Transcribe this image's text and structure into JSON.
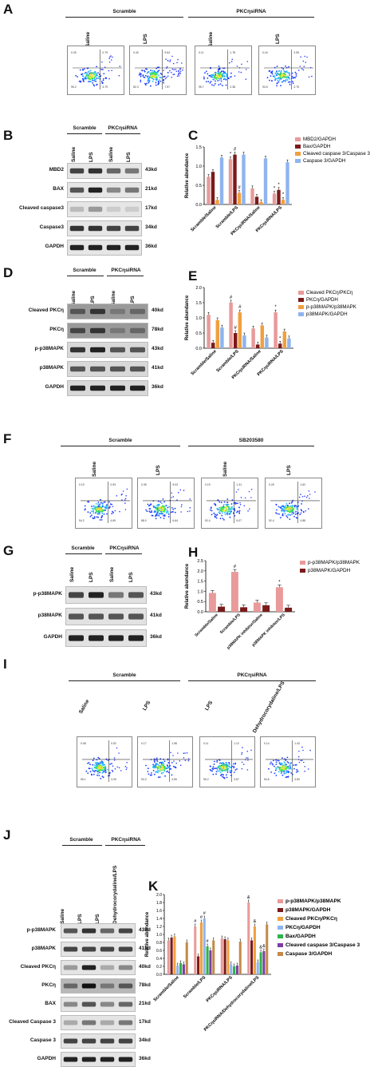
{
  "panels": {
    "A": {
      "letter": "A",
      "groups": [
        "Scramble",
        "PKCηsiRNA"
      ],
      "conditions": [
        "Saline",
        "LPS",
        "Saline",
        "LPS"
      ],
      "quadrants": [
        [
          "0.25",
          "0.79",
          "95.2",
          "3.79"
        ],
        [
          "0.43",
          "9.64",
          "82.3",
          "7.57"
        ],
        [
          "0.11",
          "1.78",
          "95.7",
          "2.38"
        ],
        [
          "0.16",
          "2.59",
          "94.5",
          "2.75"
        ]
      ]
    },
    "B": {
      "letter": "B",
      "groups": [
        "Scramble",
        "PKCηsiRNA"
      ],
      "conditions": [
        "Saline",
        "LPS",
        "Saline",
        "LPS"
      ],
      "rows": [
        {
          "name": "MBD2",
          "kd": "43kd"
        },
        {
          "name": "BAX",
          "kd": "21kd"
        },
        {
          "name": "Cleaved caspase3",
          "kd": "17kd"
        },
        {
          "name": "Caspase3",
          "kd": "34kd"
        },
        {
          "name": "GAPDH",
          "kd": "36kd"
        }
      ]
    },
    "C": {
      "letter": "C"
    },
    "D": {
      "letter": "D",
      "groups": [
        "Scramble",
        "PKCηsiRNA"
      ],
      "conditions": [
        "Saline",
        "LPS",
        "Saline",
        "LPS"
      ],
      "rows": [
        {
          "name": "Cleaved PKCη",
          "kd": "40kd"
        },
        {
          "name": "PKCη",
          "kd": "78kd"
        },
        {
          "name": "p-p38MAPK",
          "kd": "43kd"
        },
        {
          "name": "p38MAPK",
          "kd": "41kd"
        },
        {
          "name": "GAPDH",
          "kd": "36kd"
        }
      ]
    },
    "E": {
      "letter": "E"
    },
    "F": {
      "letter": "F",
      "groups": [
        "Scramble",
        "SB203580"
      ],
      "conditions": [
        "Saline",
        "LPS",
        "Saline",
        "LPS"
      ],
      "quadrants": [
        [
          "0.19",
          "0.93",
          "94.2",
          "4.69"
        ],
        [
          "0.35",
          "5.03",
          "88.0",
          "6.64"
        ],
        [
          "0.19",
          "1.31",
          "92.4",
          "6.07"
        ],
        [
          "0.25",
          "1.62",
          "92.4",
          "4.88"
        ]
      ]
    },
    "G": {
      "letter": "G",
      "groups": [
        "Scramble",
        "PKCηsiRNA"
      ],
      "conditions": [
        "Saline",
        "LPS",
        "Saline",
        "LPS"
      ],
      "rows": [
        {
          "name": "p-p38MAPK",
          "kd": "43kd"
        },
        {
          "name": "p38MAPK",
          "kd": "41kd"
        },
        {
          "name": "GAPDH",
          "kd": "36kd"
        }
      ]
    },
    "H": {
      "letter": "H"
    },
    "I": {
      "letter": "I",
      "groups": [
        "Scramble",
        "PKCηsiRNA"
      ],
      "conditions": [
        "Saline",
        "LPS",
        "LPS",
        "Dehydrocorydaline/LPS"
      ],
      "quadrants": [
        [
          "0.08",
          "0.52",
          "96.1",
          "3.30"
        ],
        [
          "0.17",
          "1.98",
          "93.3",
          "4.55"
        ],
        [
          "0.11",
          "1.12",
          "95.2",
          "3.57"
        ],
        [
          "0.14",
          "1.43",
          "94.6",
          "3.83"
        ]
      ]
    },
    "J": {
      "letter": "J",
      "groups": [
        "Scramble",
        "PKCηsiRNA"
      ],
      "conditions": [
        "Saline",
        "LPS",
        "LPS",
        "Dehydrocorydaline/LPS"
      ],
      "rows": [
        {
          "name": "p-p38MAPK",
          "kd": "43kd"
        },
        {
          "name": "p38MAPK",
          "kd": "41kd"
        },
        {
          "name": "Cleaved PKCη",
          "kd": "40kd"
        },
        {
          "name": "PKCη",
          "kd": "78kd"
        },
        {
          "name": "BAX",
          "kd": "21kd"
        },
        {
          "name": "Cleaved Caspase 3",
          "kd": "17kd"
        },
        {
          "name": "Caspase 3",
          "kd": "34kd"
        },
        {
          "name": "GAPDH",
          "kd": "36kd"
        }
      ]
    },
    "K": {
      "letter": "K"
    }
  },
  "flow_axis": {
    "x": "Comp-FL1-A(FITC) :: FITC",
    "y": "Comp-FL2-A(PE) :: PI"
  },
  "colors": {
    "pink": "#e99a9a",
    "darkred": "#7a1a1a",
    "orange": "#f0a040",
    "lightblue": "#8fb4ee",
    "green": "#2db34a",
    "purple": "#7c3ea0",
    "brown": "#c48a4a"
  },
  "chart_data": [
    {
      "type": "bar",
      "panel": "C",
      "ylabel": "Relative abundance",
      "ylim": [
        0,
        1.5
      ],
      "yticks": [
        "0.0",
        "0.5",
        "1.0",
        "1.5"
      ],
      "categories": [
        "Scramble/Saline",
        "Scramble/LPS",
        "PKCηsiRNA/Saline",
        "PKCηsiRNA/LPS"
      ],
      "series": [
        {
          "name": "MBD2/GAPDH",
          "values": [
            0.72,
            1.18,
            0.42,
            0.28
          ]
        },
        {
          "name": "Bax/GAPDH",
          "values": [
            0.85,
            1.3,
            0.2,
            0.38
          ]
        },
        {
          "name": "Cleaved caspase 3/Caspase 3",
          "values": [
            0.12,
            0.3,
            0.06,
            0.12
          ]
        },
        {
          "name": "Caspase 3/GAPDH",
          "values": [
            1.22,
            1.3,
            1.2,
            1.1
          ]
        }
      ],
      "annotations": [
        {
          "category": 1,
          "series": 0,
          "text": "*"
        },
        {
          "category": 1,
          "series": 1,
          "text": "#"
        },
        {
          "category": 1,
          "series": 2,
          "text": "#"
        },
        {
          "category": 3,
          "series": 0,
          "text": "*"
        },
        {
          "category": 3,
          "series": 1,
          "text": "*"
        },
        {
          "category": 3,
          "series": 2,
          "text": "*"
        }
      ]
    },
    {
      "type": "bar",
      "panel": "E",
      "ylabel": "Relative abundance",
      "ylim": [
        0,
        2.0
      ],
      "yticks": [
        "0.0",
        "0.5",
        "1.0",
        "1.5",
        "2.0"
      ],
      "categories": [
        "Scramble/Saline",
        "Scramble/LPS",
        "PKCηsiRNA/Saline",
        "PKCηsiRNA/LPS"
      ],
      "series": [
        {
          "name": "Cleaved PKCη/PKCη",
          "values": [
            1.1,
            1.5,
            0.65,
            1.18
          ]
        },
        {
          "name": "PKCη/GAPDH",
          "values": [
            0.18,
            0.5,
            0.12,
            0.15
          ]
        },
        {
          "name": "p-p38MAPK/p38MAPK",
          "values": [
            0.92,
            1.18,
            0.75,
            0.55
          ]
        },
        {
          "name": "p38MAPK/GAPDH",
          "values": [
            0.68,
            0.42,
            0.35,
            0.32
          ]
        }
      ],
      "annotations": [
        {
          "category": 1,
          "series": 0,
          "text": "#"
        },
        {
          "category": 1,
          "series": 1,
          "text": "#"
        },
        {
          "category": 1,
          "series": 2,
          "text": "#"
        },
        {
          "category": 3,
          "series": 0,
          "text": "*"
        },
        {
          "category": 3,
          "series": 1,
          "text": "*"
        }
      ]
    },
    {
      "type": "bar",
      "panel": "H",
      "ylabel": "Relative abundance",
      "ylim": [
        0,
        2.5
      ],
      "yticks": [
        "0.0",
        "0.5",
        "1.0",
        "1.5",
        "2.0",
        "2.5"
      ],
      "categories": [
        "Scramble/Saline",
        "Scramble/LPS",
        "p38MAPK inhibitor/Saline",
        "p38MAPK inhibitor/LPS"
      ],
      "series": [
        {
          "name": "p-p38MAPK/p38MAPK",
          "values": [
            0.92,
            1.95,
            0.45,
            1.2
          ]
        },
        {
          "name": "p38MAPK/GAPDH",
          "values": [
            0.25,
            0.22,
            0.32,
            0.2
          ]
        }
      ],
      "annotations": [
        {
          "category": 1,
          "series": 0,
          "text": "#"
        },
        {
          "category": 3,
          "series": 0,
          "text": "*"
        }
      ]
    },
    {
      "type": "bar",
      "panel": "K",
      "ylabel": "Relative abundance",
      "ylim": [
        0,
        2.0
      ],
      "yticks": [
        "0.0",
        "0.2",
        "0.4",
        "0.6",
        "0.8",
        "1.0",
        "1.2",
        "1.4",
        "1.6",
        "1.8",
        "2.0"
      ],
      "categories": [
        "Scramble/Saline",
        "Scramble/LPS",
        "PKCηsiRNA/LPS",
        "PKCηsiRNA/Dehydrocorydaline/LPS"
      ],
      "series": [
        {
          "name": "p-p38MAPK/p38MAPK",
          "values": [
            0.85,
            1.2,
            0.9,
            1.8
          ]
        },
        {
          "name": "p38MAPK/GAPDH",
          "values": [
            0.92,
            0.45,
            0.88,
            0.85
          ]
        },
        {
          "name": "Cleaved PKCη/PKCη",
          "values": [
            0.95,
            1.3,
            0.85,
            1.2
          ]
        },
        {
          "name": "PKCη/GAPDH",
          "values": [
            0.22,
            1.4,
            0.25,
            0.3
          ]
        },
        {
          "name": "Bax/GAPDH",
          "values": [
            0.28,
            0.7,
            0.2,
            0.55
          ]
        },
        {
          "name": "Cleaved caspase 3/Caspase 3",
          "values": [
            0.25,
            0.6,
            0.22,
            0.58
          ]
        },
        {
          "name": "Caspase 3/GAPDH",
          "values": [
            0.8,
            0.85,
            0.82,
            1.25
          ]
        }
      ],
      "annotations": [
        {
          "category": 1,
          "series": 0,
          "text": "#"
        },
        {
          "category": 1,
          "series": 2,
          "text": "#"
        },
        {
          "category": 1,
          "series": 3,
          "text": "#"
        },
        {
          "category": 1,
          "series": 4,
          "text": "#"
        },
        {
          "category": 3,
          "series": 0,
          "text": "&"
        },
        {
          "category": 3,
          "series": 2,
          "text": "&"
        },
        {
          "category": 3,
          "series": 4,
          "text": "&"
        },
        {
          "category": 3,
          "series": 5,
          "text": "&"
        }
      ]
    }
  ]
}
